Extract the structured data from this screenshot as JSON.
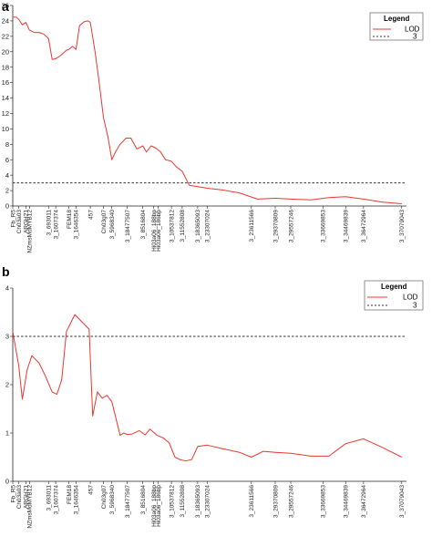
{
  "chart_data": [
    {
      "type": "line",
      "panel_label": "a",
      "ylim": [
        0,
        26
      ],
      "yticks": [
        0,
        2,
        4,
        6,
        8,
        10,
        12,
        14,
        16,
        18,
        20,
        22,
        24,
        26
      ],
      "threshold": 3,
      "legend": {
        "title": "Legend",
        "placement": "top-right",
        "entries": [
          "LOD",
          "3"
        ]
      },
      "colors": {
        "line": "#e8382f",
        "threshold": "#333333"
      },
      "marker_labels": [
        {
          "x": 0,
          "label": "Fb_R5"
        },
        {
          "x": 5,
          "label": "Ch03a03"
        },
        {
          "x": 11,
          "label": "ARGH21"
        },
        {
          "x": 14,
          "label": "NZmsMdMYB12"
        },
        {
          "x": 30,
          "label": "3_693011"
        },
        {
          "x": 36,
          "label": "3_1607374"
        },
        {
          "x": 47,
          "label": "FEM18"
        },
        {
          "x": 53,
          "label": "3_1646354"
        },
        {
          "x": 65,
          "label": "457"
        },
        {
          "x": 76,
          "label": "Ch03g07"
        },
        {
          "x": 83,
          "label": "3_5968340"
        },
        {
          "x": 96,
          "label": "3_18477507"
        },
        {
          "x": 109,
          "label": "3_8516804"
        },
        {
          "x": 118,
          "label": "Hi03a06_188bp"
        },
        {
          "x": 122,
          "label": "Hi03a06_186bp"
        },
        {
          "x": 133,
          "label": "3_10537812"
        },
        {
          "x": 142,
          "label": "3_11552808"
        },
        {
          "x": 155,
          "label": "3_18365093"
        },
        {
          "x": 163,
          "label": "3_23307024"
        },
        {
          "x": 200,
          "label": "3_23611566"
        },
        {
          "x": 220,
          "label": "3_29370809"
        },
        {
          "x": 233,
          "label": "3_29557246"
        },
        {
          "x": 260,
          "label": "3_33669853"
        },
        {
          "x": 279,
          "label": "3_34469839"
        },
        {
          "x": 294,
          "label": "3_36472964"
        },
        {
          "x": 326,
          "label": "3_37079043"
        }
      ],
      "x_range": [
        0,
        330
      ],
      "series": [
        {
          "name": "LOD",
          "x": [
            0,
            3,
            5,
            8,
            11,
            14,
            18,
            22,
            26,
            30,
            33,
            36,
            40,
            45,
            47,
            50,
            53,
            56,
            60,
            63,
            65,
            69,
            72,
            76,
            80,
            83,
            86,
            90,
            95,
            99,
            104,
            109,
            112,
            116,
            120,
            124,
            128,
            133,
            137,
            142,
            148,
            155,
            163,
            175,
            190,
            205,
            220,
            233,
            250,
            265,
            279,
            294,
            310,
            326
          ],
          "y": [
            24.5,
            24.5,
            24.2,
            23.5,
            23.8,
            22.8,
            22.5,
            22.5,
            22.3,
            21.7,
            19.0,
            19.1,
            19.5,
            20.2,
            20.3,
            20.7,
            20.3,
            23.4,
            23.9,
            24.0,
            23.8,
            20.0,
            16.5,
            11.5,
            8.8,
            6.0,
            7.0,
            8.0,
            8.8,
            8.8,
            7.4,
            7.8,
            7.0,
            7.8,
            7.5,
            7.0,
            6.0,
            5.8,
            5.1,
            4.5,
            2.7,
            2.5,
            2.3,
            2.1,
            1.7,
            0.9,
            1.0,
            0.9,
            0.8,
            1.1,
            1.2,
            0.9,
            0.5,
            0.3
          ]
        }
      ]
    },
    {
      "type": "line",
      "panel_label": "b",
      "ylim": [
        0,
        4
      ],
      "yticks": [
        0,
        1,
        2,
        3,
        4
      ],
      "threshold": 3,
      "legend": {
        "title": "Legend",
        "placement": "top-right",
        "entries": [
          "LOD",
          "3"
        ]
      },
      "colors": {
        "line": "#e8382f",
        "threshold": "#333333"
      },
      "marker_labels": [
        {
          "x": 0,
          "label": "Fb_R5"
        },
        {
          "x": 5,
          "label": "Ch03a03"
        },
        {
          "x": 11,
          "label": "ARGH21"
        },
        {
          "x": 14,
          "label": "NZmsMdMYB12"
        },
        {
          "x": 30,
          "label": "3_693011"
        },
        {
          "x": 36,
          "label": "3_1607374"
        },
        {
          "x": 47,
          "label": "FEM18"
        },
        {
          "x": 53,
          "label": "3_1646354"
        },
        {
          "x": 65,
          "label": "457"
        },
        {
          "x": 76,
          "label": "Ch03g07"
        },
        {
          "x": 83,
          "label": "3_5968340"
        },
        {
          "x": 96,
          "label": "3_18477507"
        },
        {
          "x": 109,
          "label": "3_8516804"
        },
        {
          "x": 118,
          "label": "Hi03a06_188bp"
        },
        {
          "x": 122,
          "label": "Hi03a06_186bp"
        },
        {
          "x": 133,
          "label": "3_10537812"
        },
        {
          "x": 142,
          "label": "3_11552808"
        },
        {
          "x": 155,
          "label": "3_18365093"
        },
        {
          "x": 163,
          "label": "3_23307024"
        },
        {
          "x": 200,
          "label": "3_23611566"
        },
        {
          "x": 220,
          "label": "3_29370809"
        },
        {
          "x": 233,
          "label": "3_29557246"
        },
        {
          "x": 260,
          "label": "3_33669853"
        },
        {
          "x": 279,
          "label": "3_34469839"
        },
        {
          "x": 294,
          "label": "3_36472964"
        },
        {
          "x": 326,
          "label": "3_37079043"
        }
      ],
      "x_range": [
        0,
        330
      ],
      "series": [
        {
          "name": "LOD",
          "x": [
            0,
            5,
            8,
            12,
            16,
            22,
            27,
            33,
            37,
            41,
            45,
            52,
            58,
            64,
            67,
            71,
            75,
            79,
            83,
            86,
            90,
            93,
            96,
            100,
            106,
            111,
            115,
            121,
            126,
            131,
            136,
            140,
            145,
            150,
            155,
            163,
            175,
            190,
            200,
            210,
            220,
            233,
            250,
            265,
            279,
            294,
            310,
            326
          ],
          "y": [
            3.1,
            2.4,
            1.7,
            2.3,
            2.6,
            2.45,
            2.2,
            1.85,
            1.8,
            2.1,
            3.1,
            3.45,
            3.3,
            3.15,
            1.35,
            1.85,
            1.72,
            1.78,
            1.65,
            1.35,
            0.95,
            1.0,
            0.97,
            0.98,
            1.05,
            0.96,
            1.08,
            0.95,
            0.9,
            0.8,
            0.5,
            0.45,
            0.42,
            0.45,
            0.72,
            0.75,
            0.68,
            0.6,
            0.5,
            0.62,
            0.6,
            0.58,
            0.52,
            0.52,
            0.78,
            0.88,
            0.7,
            0.5
          ]
        }
      ]
    }
  ],
  "panels": [
    {
      "label": "a",
      "legend_title": "Legend",
      "legend_lod": "LOD",
      "legend_thr": "3"
    },
    {
      "label": "b",
      "legend_title": "Legend",
      "legend_lod": "LOD",
      "legend_thr": "3"
    }
  ]
}
